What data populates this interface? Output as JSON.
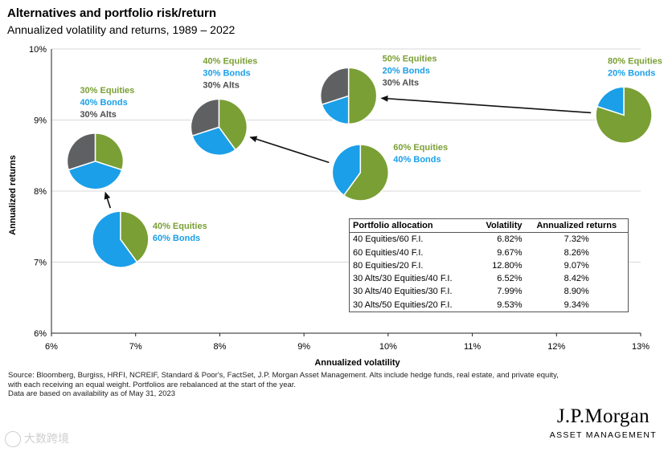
{
  "header": {
    "title": "Alternatives and portfolio risk/return",
    "subtitle": "Annualized volatility and returns, 1989 – 2022"
  },
  "colors": {
    "equities": "#7a9f35",
    "bonds": "#1a9fe8",
    "alts": "#5f6062",
    "equities_label": "#7a9f35",
    "bonds_label": "#1a9fe8",
    "alts_label": "#4d4d4d",
    "grid": "#d9d9d9",
    "axis": "#222222"
  },
  "chart_data": {
    "type": "scatter",
    "xlabel": "Annualized volatility",
    "ylabel": "Annualized returns",
    "xlim": [
      6,
      13
    ],
    "ylim": [
      6,
      10
    ],
    "x_ticks": [
      "6%",
      "7%",
      "8%",
      "9%",
      "10%",
      "11%",
      "12%",
      "13%"
    ],
    "y_ticks": [
      "6%",
      "7%",
      "8%",
      "9%",
      "10%"
    ],
    "grid": "horizontal",
    "points": [
      {
        "id": "p4060",
        "x": 6.82,
        "y": 7.32,
        "labels": [
          "40% Equities",
          "60% Bonds"
        ],
        "slices": [
          {
            "name": "Equities",
            "value": 40
          },
          {
            "name": "Bonds",
            "value": 60
          }
        ]
      },
      {
        "id": "p6040",
        "x": 9.67,
        "y": 8.26,
        "labels": [
          "60% Equities",
          "40% Bonds"
        ],
        "slices": [
          {
            "name": "Equities",
            "value": 60
          },
          {
            "name": "Bonds",
            "value": 40
          }
        ]
      },
      {
        "id": "p8020",
        "x": 12.8,
        "y": 9.07,
        "labels": [
          "80% Equities",
          "20% Bonds"
        ],
        "slices": [
          {
            "name": "Equities",
            "value": 80
          },
          {
            "name": "Bonds",
            "value": 20
          }
        ]
      },
      {
        "id": "p303040",
        "x": 6.52,
        "y": 8.42,
        "labels": [
          "30% Equities",
          "40% Bonds",
          "30% Alts"
        ],
        "slices": [
          {
            "name": "Equities",
            "value": 30
          },
          {
            "name": "Bonds",
            "value": 40
          },
          {
            "name": "Alts",
            "value": 30
          }
        ]
      },
      {
        "id": "p304030",
        "x": 7.99,
        "y": 8.9,
        "labels": [
          "40% Equities",
          "30% Bonds",
          "30% Alts"
        ],
        "slices": [
          {
            "name": "Equities",
            "value": 40
          },
          {
            "name": "Bonds",
            "value": 30
          },
          {
            "name": "Alts",
            "value": 30
          }
        ]
      },
      {
        "id": "p305020",
        "x": 9.53,
        "y": 9.34,
        "labels": [
          "50% Equities",
          "20% Bonds",
          "30% Alts"
        ],
        "slices": [
          {
            "name": "Equities",
            "value": 50
          },
          {
            "name": "Bonds",
            "value": 20
          },
          {
            "name": "Alts",
            "value": 30
          }
        ]
      }
    ],
    "arrows": [
      {
        "from": "p4060",
        "to": "p303040"
      },
      {
        "from": "p6040",
        "to": "p304030"
      },
      {
        "from": "p8020",
        "to": "p305020"
      }
    ]
  },
  "table": {
    "headers": [
      "Portfolio allocation",
      "Volatility",
      "Annualized returns"
    ],
    "rows": [
      [
        "40 Equities/60 F.I.",
        "6.82%",
        "7.32%"
      ],
      [
        "60 Equities/40 F.I.",
        "9.67%",
        "8.26%"
      ],
      [
        "80 Equities/20 F.I.",
        "12.80%",
        "9.07%"
      ],
      [
        "30 Alts/30 Equities/40 F.I.",
        "6.52%",
        "8.42%"
      ],
      [
        "30 Alts/40 Equities/30 F.I.",
        "7.99%",
        "8.90%"
      ],
      [
        "30 Alts/50 Equities/20 F.I.",
        "9.53%",
        "9.34%"
      ]
    ]
  },
  "footer": {
    "source_line1": "Source: Bloomberg, Burgiss, HRFI, NCREIF, Standard & Poor's, FactSet, J.P. Morgan Asset Management. Alts include hedge funds, real estate, and private equity, with each receiving an equal weight. Portfolios are rebalanced at the start of the year.",
    "source_line2": "Data are based on availability as of May 31, 2023",
    "logo_name": "J.P.Morgan",
    "logo_sub": "ASSET MANAGEMENT",
    "watermark": "大数跨境"
  }
}
